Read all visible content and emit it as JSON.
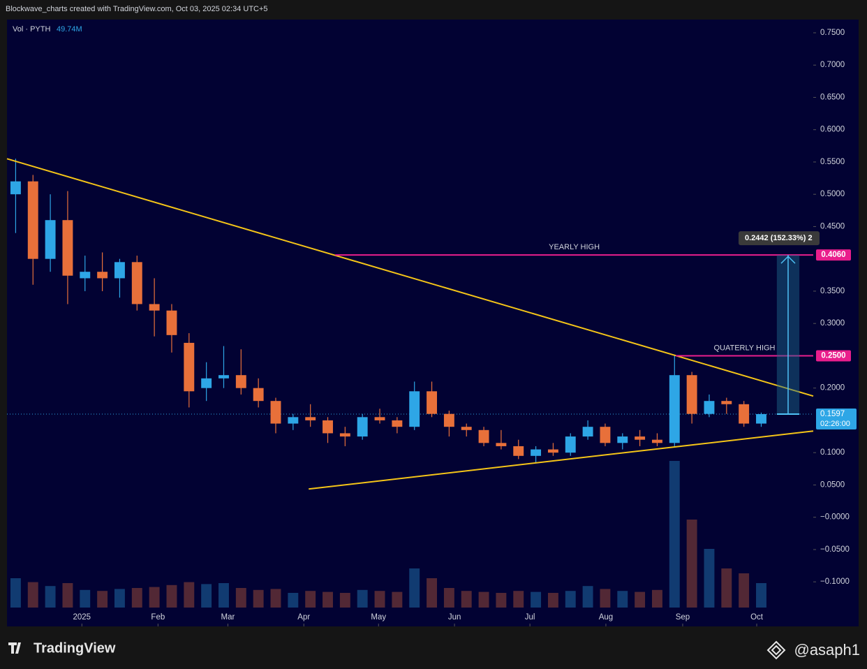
{
  "chart_data": {
    "type": "candlestick",
    "header": "Blockwave_charts created with TradingView.com, Oct 03, 2025 02:34 UTC+5",
    "volume_title": "Vol · PYTH",
    "volume_label": "49.74M",
    "brand": "TradingView",
    "author": "@asaph1",
    "categories": [
      null,
      null,
      null,
      null,
      null,
      null,
      null,
      null,
      null,
      null,
      null,
      null,
      null,
      null,
      null,
      null,
      null,
      null,
      null,
      null,
      null,
      null,
      null,
      null,
      null,
      null,
      null,
      null,
      null,
      null,
      null,
      null,
      null,
      null,
      null,
      null,
      null,
      null,
      null,
      null,
      null,
      null,
      null,
      null
    ],
    "open": [
      0.5,
      0.52,
      0.4,
      0.46,
      0.37,
      0.38,
      0.37,
      0.395,
      0.33,
      0.32,
      0.27,
      0.2,
      0.215,
      0.22,
      0.2,
      0.18,
      0.145,
      0.155,
      0.15,
      0.13,
      0.125,
      0.155,
      0.15,
      0.14,
      0.195,
      0.16,
      0.14,
      0.135,
      0.115,
      0.11,
      0.095,
      0.105,
      0.1,
      0.125,
      0.14,
      0.115,
      0.125,
      0.12,
      0.115,
      0.22,
      0.16,
      0.18,
      0.175,
      0.145
    ],
    "high": [
      0.555,
      0.53,
      0.5,
      0.505,
      0.405,
      0.41,
      0.4,
      0.405,
      0.37,
      0.33,
      0.285,
      0.24,
      0.265,
      0.26,
      0.215,
      0.185,
      0.16,
      0.175,
      0.155,
      0.14,
      0.16,
      0.168,
      0.155,
      0.21,
      0.21,
      0.165,
      0.145,
      0.14,
      0.135,
      0.12,
      0.11,
      0.115,
      0.13,
      0.15,
      0.145,
      0.13,
      0.135,
      0.13,
      0.25,
      0.225,
      0.19,
      0.185,
      0.18,
      0.162
    ],
    "low": [
      0.44,
      0.36,
      0.38,
      0.33,
      0.35,
      0.35,
      0.34,
      0.32,
      0.28,
      0.255,
      0.17,
      0.18,
      0.2,
      0.19,
      0.17,
      0.13,
      0.135,
      0.14,
      0.115,
      0.11,
      0.12,
      0.145,
      0.13,
      0.135,
      0.155,
      0.125,
      0.125,
      0.11,
      0.105,
      0.09,
      0.085,
      0.095,
      0.095,
      0.12,
      0.11,
      0.105,
      0.11,
      0.11,
      0.11,
      0.145,
      0.155,
      0.16,
      0.14,
      0.14
    ],
    "close": [
      0.52,
      0.4,
      0.46,
      0.374,
      0.38,
      0.37,
      0.395,
      0.33,
      0.32,
      0.282,
      0.195,
      0.215,
      0.22,
      0.2,
      0.18,
      0.145,
      0.155,
      0.15,
      0.13,
      0.125,
      0.155,
      0.15,
      0.14,
      0.195,
      0.16,
      0.14,
      0.135,
      0.115,
      0.11,
      0.095,
      0.105,
      0.1,
      0.125,
      0.14,
      0.115,
      0.125,
      0.12,
      0.115,
      0.22,
      0.16,
      0.18,
      0.175,
      0.145,
      0.1597
    ],
    "volume": [
      300,
      260,
      220,
      250,
      180,
      170,
      190,
      200,
      210,
      230,
      260,
      240,
      250,
      200,
      180,
      190,
      150,
      170,
      160,
      150,
      180,
      170,
      160,
      400,
      300,
      200,
      170,
      160,
      150,
      170,
      160,
      150,
      170,
      220,
      190,
      170,
      160,
      180,
      1500,
      900,
      600,
      400,
      350,
      250
    ],
    "up_color": "#2ea6e6",
    "down_color": "#e8703a",
    "xlim": [
      -0.5,
      46
    ],
    "ylim": [
      -0.169,
      0.7705
    ],
    "yticks": [
      {
        "value": 0.75,
        "label": "0.7500"
      },
      {
        "value": 0.7,
        "label": "0.7000"
      },
      {
        "value": 0.65,
        "label": "0.6500"
      },
      {
        "value": 0.6,
        "label": "0.6000"
      },
      {
        "value": 0.55,
        "label": "0.5500"
      },
      {
        "value": 0.5,
        "label": "0.5000"
      },
      {
        "value": 0.45,
        "label": "0.4500"
      },
      {
        "value": 0.35,
        "label": "0.3500"
      },
      {
        "value": 0.3,
        "label": "0.3000"
      },
      {
        "value": 0.2,
        "label": "0.2000"
      },
      {
        "value": 0.1,
        "label": "0.1000"
      },
      {
        "value": 0.05,
        "label": "0.0500"
      },
      {
        "value": 0,
        "label": "−0.0000"
      },
      {
        "value": -0.05,
        "label": "−0.0500"
      },
      {
        "value": -0.1,
        "label": "−0.1000"
      }
    ],
    "xticks": [
      {
        "value": 3.82,
        "label": "2025"
      },
      {
        "value": 8.21,
        "label": "Feb"
      },
      {
        "value": 12.24,
        "label": "Mar"
      },
      {
        "value": 16.62,
        "label": "Apr"
      },
      {
        "value": 20.93,
        "label": "May"
      },
      {
        "value": 25.31,
        "label": "Jun"
      },
      {
        "value": 29.66,
        "label": "Jul"
      },
      {
        "value": 34.04,
        "label": "Aug"
      },
      {
        "value": 38.47,
        "label": "Sep"
      },
      {
        "value": 42.74,
        "label": "Oct"
      }
    ],
    "last_price": 0.1597,
    "countdown": "02:26:00",
    "hlines": [
      {
        "label": "YEARLY HIGH",
        "value": 0.406,
        "value_label": "0.4060",
        "start": 18.43,
        "color": "#e91e8c"
      },
      {
        "label": "QUATERLY HIGH",
        "value": 0.25,
        "value_label": "0.2500",
        "start": 38.07,
        "color": "#e91e8c"
      }
    ],
    "trendlines": [
      {
        "x": [
          -0.5,
          46
        ],
        "y": [
          0.555,
          0.1876
        ],
        "color": "#f5c518"
      },
      {
        "x": [
          16.9,
          46
        ],
        "y": [
          0.0437,
          0.1335
        ],
        "color": "#f5c518"
      }
    ],
    "measure": {
      "start": 43.9,
      "end": 45.2,
      "label": "0.2442 (152.33%) 2"
    }
  }
}
